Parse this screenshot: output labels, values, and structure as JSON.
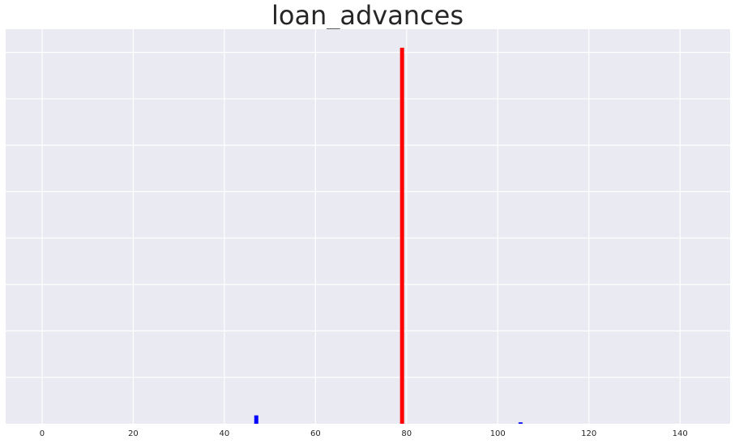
{
  "chart_data": {
    "type": "bar",
    "title": "loan_advances",
    "xlabel": "",
    "ylabel": "",
    "xlim": [
      -8,
      151
    ],
    "ylim": [
      0,
      8.5
    ],
    "xticks": [
      0,
      20,
      40,
      60,
      80,
      100,
      120,
      140
    ],
    "yticks": [
      1,
      2,
      3,
      4,
      5,
      6,
      7,
      8
    ],
    "grid": true,
    "background": "#eaeaf2",
    "grid_color": "#ffffff",
    "bars": [
      {
        "x": 47,
        "value": 0.18,
        "color": "#0000ff"
      },
      {
        "x": 79,
        "value": 8.1,
        "color": "#ff0000"
      },
      {
        "x": 105,
        "value": 0.03,
        "color": "#0000ff"
      }
    ]
  }
}
